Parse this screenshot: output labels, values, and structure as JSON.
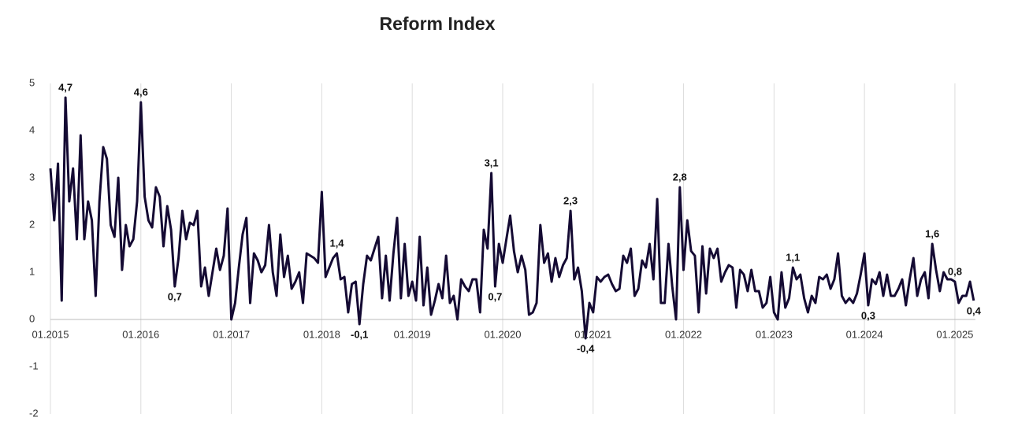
{
  "chart_data": {
    "type": "line",
    "title": "Reform Index",
    "categories": [
      "01.2015",
      null,
      null,
      null,
      null,
      null,
      null,
      null,
      null,
      null,
      null,
      null,
      null,
      null,
      null,
      null,
      null,
      null,
      null,
      null,
      null,
      null,
      null,
      null,
      "01.2016",
      null,
      null,
      null,
      null,
      null,
      null,
      null,
      null,
      null,
      null,
      null,
      null,
      null,
      null,
      null,
      null,
      null,
      null,
      null,
      null,
      null,
      null,
      null,
      "01.2017",
      null,
      null,
      null,
      null,
      null,
      null,
      null,
      null,
      null,
      null,
      null,
      null,
      null,
      null,
      null,
      null,
      null,
      null,
      null,
      null,
      null,
      null,
      null,
      "01.2018",
      null,
      null,
      null,
      null,
      null,
      null,
      null,
      null,
      null,
      null,
      null,
      null,
      null,
      null,
      null,
      null,
      null,
      null,
      null,
      null,
      null,
      null,
      null,
      "01.2019",
      null,
      null,
      null,
      null,
      null,
      null,
      null,
      null,
      null,
      null,
      null,
      null,
      null,
      null,
      null,
      null,
      null,
      null,
      null,
      null,
      null,
      null,
      null,
      "01.2020",
      null,
      null,
      null,
      null,
      null,
      null,
      null,
      null,
      null,
      null,
      null,
      null,
      null,
      null,
      null,
      null,
      null,
      null,
      null,
      null,
      null,
      null,
      null,
      "01.2021",
      null,
      null,
      null,
      null,
      null,
      null,
      null,
      null,
      null,
      null,
      null,
      null,
      null,
      null,
      null,
      null,
      null,
      null,
      null,
      null,
      null,
      null,
      null,
      "01.2022",
      null,
      null,
      null,
      null,
      null,
      null,
      null,
      null,
      null,
      null,
      null,
      null,
      null,
      null,
      null,
      null,
      null,
      null,
      null,
      null,
      null,
      null,
      null,
      "01.2023",
      null,
      null,
      null,
      null,
      null,
      null,
      null,
      null,
      null,
      null,
      null,
      null,
      null,
      null,
      null,
      null,
      null,
      null,
      null,
      null,
      null,
      null,
      null,
      "01.2024",
      null,
      null,
      null,
      null,
      null,
      null,
      null,
      null,
      null,
      null,
      null,
      null,
      null,
      null,
      null,
      null,
      null,
      null,
      null,
      null,
      null,
      null,
      null,
      "01.2025",
      null,
      null,
      null,
      null,
      null
    ],
    "series": [
      {
        "name": "Reform Index",
        "color": "#140a33",
        "values": [
          3.2,
          2.1,
          3.3,
          0.4,
          4.7,
          2.5,
          3.2,
          1.7,
          3.9,
          1.7,
          2.5,
          2.1,
          0.5,
          2.5,
          3.65,
          3.4,
          2.0,
          1.75,
          3.0,
          1.05,
          2.0,
          1.55,
          1.7,
          2.5,
          4.6,
          2.6,
          2.1,
          1.95,
          2.8,
          2.6,
          1.55,
          2.4,
          1.9,
          0.7,
          1.3,
          2.3,
          1.7,
          2.05,
          2.0,
          2.3,
          0.7,
          1.1,
          0.5,
          1.0,
          1.5,
          1.05,
          1.35,
          2.35,
          0.0,
          0.35,
          1.1,
          1.8,
          2.15,
          0.35,
          1.4,
          1.25,
          1.0,
          1.15,
          2.0,
          1.0,
          0.5,
          1.8,
          0.9,
          1.35,
          0.65,
          0.8,
          1.0,
          0.35,
          1.4,
          1.35,
          1.3,
          1.2,
          2.7,
          0.9,
          1.1,
          1.3,
          1.4,
          0.85,
          0.9,
          0.15,
          0.75,
          0.8,
          -0.1,
          0.75,
          1.35,
          1.25,
          1.5,
          1.75,
          0.45,
          1.35,
          0.4,
          1.4,
          2.15,
          0.45,
          1.6,
          0.5,
          0.8,
          0.4,
          1.75,
          0.3,
          1.1,
          0.1,
          0.4,
          0.75,
          0.45,
          1.35,
          0.35,
          0.5,
          0.0,
          0.85,
          0.7,
          0.6,
          0.85,
          0.85,
          0.15,
          1.9,
          1.5,
          3.1,
          0.7,
          1.6,
          1.2,
          1.7,
          2.2,
          1.45,
          1.0,
          1.35,
          1.05,
          0.1,
          0.15,
          0.35,
          2.0,
          1.2,
          1.4,
          0.8,
          1.3,
          0.9,
          1.15,
          1.3,
          2.3,
          0.85,
          1.1,
          0.6,
          -0.4,
          0.35,
          0.15,
          0.9,
          0.8,
          0.9,
          0.95,
          0.75,
          0.6,
          0.65,
          1.35,
          1.2,
          1.5,
          0.5,
          0.65,
          1.25,
          1.1,
          1.6,
          0.85,
          2.55,
          0.35,
          0.35,
          1.6,
          0.7,
          0.0,
          2.8,
          1.05,
          2.1,
          1.45,
          1.35,
          0.15,
          1.55,
          0.55,
          1.5,
          1.3,
          1.5,
          0.8,
          1.0,
          1.15,
          1.1,
          0.25,
          1.05,
          0.95,
          0.6,
          1.05,
          0.6,
          0.6,
          0.25,
          0.35,
          0.9,
          0.15,
          0.0,
          1.0,
          0.25,
          0.45,
          1.1,
          0.85,
          0.95,
          0.45,
          0.15,
          0.5,
          0.35,
          0.9,
          0.85,
          0.95,
          0.65,
          0.85,
          1.4,
          0.5,
          0.35,
          0.45,
          0.35,
          0.55,
          0.95,
          1.4,
          0.3,
          0.85,
          0.75,
          1.0,
          0.5,
          0.95,
          0.5,
          0.5,
          0.65,
          0.85,
          0.3,
          0.85,
          1.3,
          0.5,
          0.85,
          1.0,
          0.45,
          1.6,
          1.05,
          0.6,
          1.0,
          0.85,
          0.85,
          0.8,
          0.35,
          0.5,
          0.5,
          0.8,
          0.4
        ],
        "value_labels": [
          null,
          null,
          null,
          null,
          "4,7",
          null,
          null,
          null,
          null,
          null,
          null,
          null,
          null,
          null,
          null,
          null,
          null,
          null,
          null,
          null,
          null,
          null,
          null,
          null,
          "4,6",
          null,
          null,
          null,
          null,
          null,
          null,
          null,
          null,
          "0,7",
          null,
          null,
          null,
          null,
          null,
          null,
          null,
          null,
          null,
          null,
          null,
          null,
          null,
          null,
          null,
          null,
          null,
          null,
          null,
          null,
          null,
          null,
          null,
          null,
          null,
          null,
          null,
          null,
          null,
          null,
          null,
          null,
          null,
          null,
          null,
          null,
          null,
          null,
          null,
          null,
          null,
          null,
          "1,4",
          null,
          null,
          null,
          null,
          null,
          "-0,1",
          null,
          null,
          null,
          null,
          null,
          null,
          null,
          null,
          null,
          null,
          null,
          null,
          null,
          null,
          null,
          null,
          null,
          null,
          null,
          null,
          null,
          null,
          null,
          null,
          null,
          null,
          null,
          null,
          null,
          null,
          null,
          null,
          null,
          null,
          "3,1",
          "0,7",
          null,
          null,
          null,
          null,
          null,
          null,
          null,
          null,
          null,
          null,
          null,
          null,
          null,
          null,
          null,
          null,
          null,
          null,
          null,
          "2,3",
          null,
          null,
          null,
          "-0,4",
          null,
          null,
          null,
          null,
          null,
          null,
          null,
          null,
          null,
          null,
          null,
          null,
          null,
          null,
          null,
          null,
          null,
          null,
          null,
          null,
          null,
          null,
          null,
          null,
          "2,8",
          null,
          null,
          null,
          null,
          null,
          null,
          null,
          null,
          null,
          null,
          null,
          null,
          null,
          null,
          null,
          null,
          null,
          null,
          null,
          null,
          null,
          null,
          null,
          null,
          null,
          null,
          null,
          null,
          null,
          "1,1",
          null,
          null,
          null,
          null,
          null,
          null,
          null,
          null,
          null,
          null,
          null,
          null,
          null,
          null,
          null,
          null,
          null,
          null,
          null,
          "0,3",
          null,
          null,
          null,
          null,
          null,
          null,
          null,
          null,
          null,
          null,
          null,
          null,
          null,
          null,
          null,
          null,
          "1,6",
          null,
          null,
          null,
          null,
          null,
          "0,8",
          null,
          null,
          null,
          null,
          "0,4"
        ]
      }
    ],
    "ylim": [
      -2,
      5
    ],
    "yticks": [
      -2,
      -1,
      0,
      1,
      2,
      3,
      4,
      5
    ],
    "grid": true
  }
}
